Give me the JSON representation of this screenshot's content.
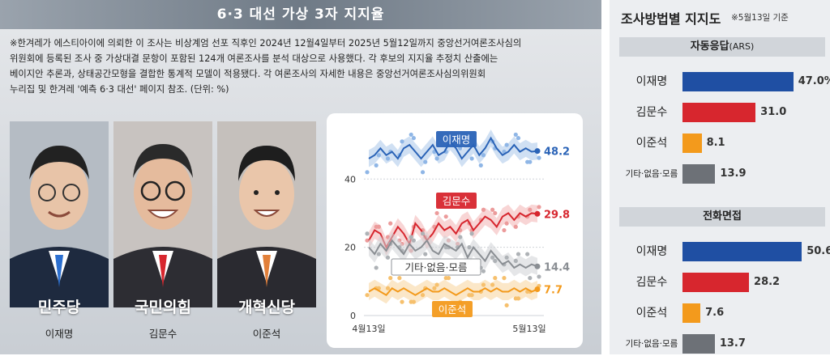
{
  "header": {
    "title": "6·3 대선 가상 3자 지지율",
    "note_lines": [
      "※한겨레가 에스티아이에 의뢰한 이 조사는 비상계엄 선포 직후인 2024년 12월4일부터 2025년 5월12일까지 중앙선거여론조사심의",
      "위원회에 등록된 조사 중 가상대결 문항이 포함된 124개 여론조사를 분석 대상으로 사용했다. 각 후보의 지지율 추정치 산출에는",
      "베이지안 추론과, 상태공간모형을 결합한 통계적 모델이 적용됐다. 각 여론조사의 자세한 내용은 중앙선거여론조사심의위원회",
      "누리집 및 한겨레 '예측 6·3 대선' 페이지 참조. (단위: %)"
    ]
  },
  "candidates": [
    {
      "name": "이재명",
      "party": "민주당",
      "color": "#1f4fa3"
    },
    {
      "name": "김문수",
      "party": "국민의힘",
      "color": "#d7262e"
    },
    {
      "name": "이준석",
      "party": "개혁신당",
      "color": "#f39a1c"
    }
  ],
  "chart_data": [
    {
      "type": "line",
      "x_labels": [
        "4월13일",
        "5월13일"
      ],
      "y_ticks": [
        0,
        20,
        40
      ],
      "ylim": [
        0,
        55
      ],
      "series": [
        {
          "name": "이재명",
          "color": "#2a63b7",
          "band": "#a9c6ea",
          "dot": "#8fb6e6",
          "end_value": "48.2",
          "values": [
            46,
            47,
            49,
            47,
            48,
            46,
            49,
            50,
            48,
            46,
            48,
            50,
            47,
            48,
            51,
            49,
            46,
            48,
            50,
            47,
            49,
            52,
            49,
            47,
            48,
            50,
            48,
            49,
            48,
            48.2
          ]
        },
        {
          "name": "김문수",
          "color": "#d7262e",
          "band": "#f3b3b3",
          "dot": "#ec9b9b",
          "end_value": "29.8",
          "values": [
            22,
            25,
            24,
            20,
            23,
            26,
            24,
            21,
            27,
            25,
            22,
            24,
            27,
            25,
            26,
            24,
            27,
            28,
            25,
            27,
            29,
            28,
            26,
            29,
            30,
            28,
            30,
            29,
            30,
            29.8
          ]
        },
        {
          "name": "기타·없음·모름",
          "color": "#8a8e93",
          "band": "#cfd2d5",
          "dot": "#aeb2b6",
          "end_value": "14.4",
          "values": [
            20,
            18,
            21,
            19,
            22,
            20,
            18,
            21,
            19,
            20,
            22,
            19,
            18,
            21,
            20,
            19,
            21,
            17,
            20,
            18,
            16,
            19,
            17,
            15,
            16,
            14,
            15,
            14,
            15,
            14.4
          ]
        },
        {
          "name": "이준석",
          "color": "#f39a1c",
          "band": "#f8d39a",
          "dot": "#f6c06d",
          "end_value": "7.7",
          "values": [
            7,
            8,
            7,
            6,
            8,
            7,
            8,
            7,
            6,
            7,
            8,
            7,
            7,
            8,
            7,
            6,
            7,
            8,
            7,
            7,
            8,
            7,
            8,
            7,
            7,
            8,
            7,
            8,
            7,
            7.7
          ]
        }
      ]
    },
    {
      "type": "bar",
      "title": "조사방법별 지지도",
      "note": "※5월13일 기준",
      "groups": [
        {
          "method": "자동응답",
          "method_suffix": "(ARS)",
          "rows": [
            {
              "label": "이재명",
              "value": 47.0,
              "display": "47.0%",
              "color": "#1f4fa3"
            },
            {
              "label": "김문수",
              "value": 31.0,
              "display": "31.0",
              "color": "#d7262e"
            },
            {
              "label": "이준석",
              "value": 8.1,
              "display": "8.1",
              "color": "#f39a1c"
            },
            {
              "label": "기타·없음·모름",
              "value": 13.9,
              "display": "13.9",
              "color": "#6d7177"
            }
          ]
        },
        {
          "method": "전화면접",
          "method_suffix": "",
          "rows": [
            {
              "label": "이재명",
              "value": 50.6,
              "display": "50.6",
              "color": "#1f4fa3"
            },
            {
              "label": "김문수",
              "value": 28.2,
              "display": "28.2",
              "color": "#d7262e"
            },
            {
              "label": "이준석",
              "value": 7.6,
              "display": "7.6",
              "color": "#f39a1c"
            },
            {
              "label": "기타·없음·모름",
              "value": 13.7,
              "display": "13.7",
              "color": "#6d7177"
            }
          ]
        }
      ]
    }
  ]
}
